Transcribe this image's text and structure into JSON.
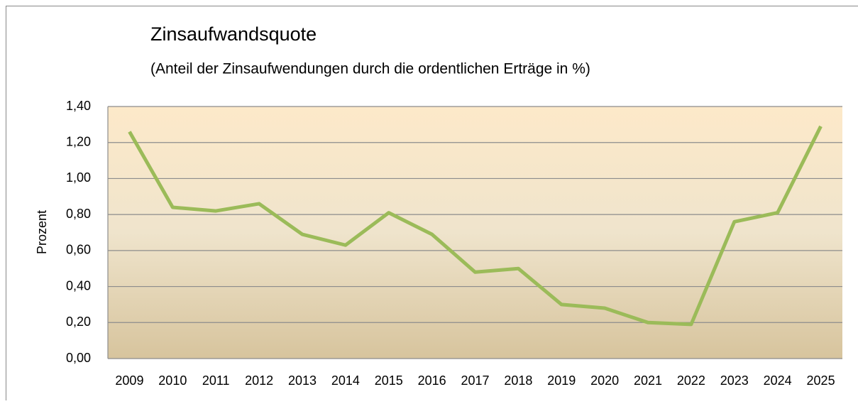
{
  "chart_data": {
    "type": "line",
    "title": "Zinsaufwandsquote",
    "subtitle": "(Anteil der Zinsaufwendungen durch die ordentlichen Erträge in %)",
    "y_label": "Prozent",
    "categories": [
      "2009",
      "2010",
      "2011",
      "2012",
      "2013",
      "2014",
      "2015",
      "2016",
      "2017",
      "2018",
      "2019",
      "2020",
      "2021",
      "2022",
      "2023",
      "2024",
      "2025"
    ],
    "series": [
      {
        "color": "#9bbb59",
        "values": [
          1.26,
          0.84,
          0.82,
          0.86,
          0.69,
          0.63,
          0.81,
          0.69,
          0.48,
          0.5,
          0.3,
          0.28,
          0.2,
          0.19,
          0.76,
          0.81,
          1.29
        ]
      }
    ],
    "ylim": [
      0,
      1.4
    ],
    "yticks": [
      {
        "value": 0,
        "label": "0,00"
      },
      {
        "value": 0.2,
        "label": "0,20"
      },
      {
        "value": 0.4,
        "label": "0,40"
      },
      {
        "value": 0.6,
        "label": "0,60"
      },
      {
        "value": 0.8,
        "label": "0,80"
      },
      {
        "value": 1.0,
        "label": "1,00"
      },
      {
        "value": 1.2,
        "label": "1,20"
      },
      {
        "value": 1.4,
        "label": "1,40"
      }
    ],
    "grid": true
  }
}
